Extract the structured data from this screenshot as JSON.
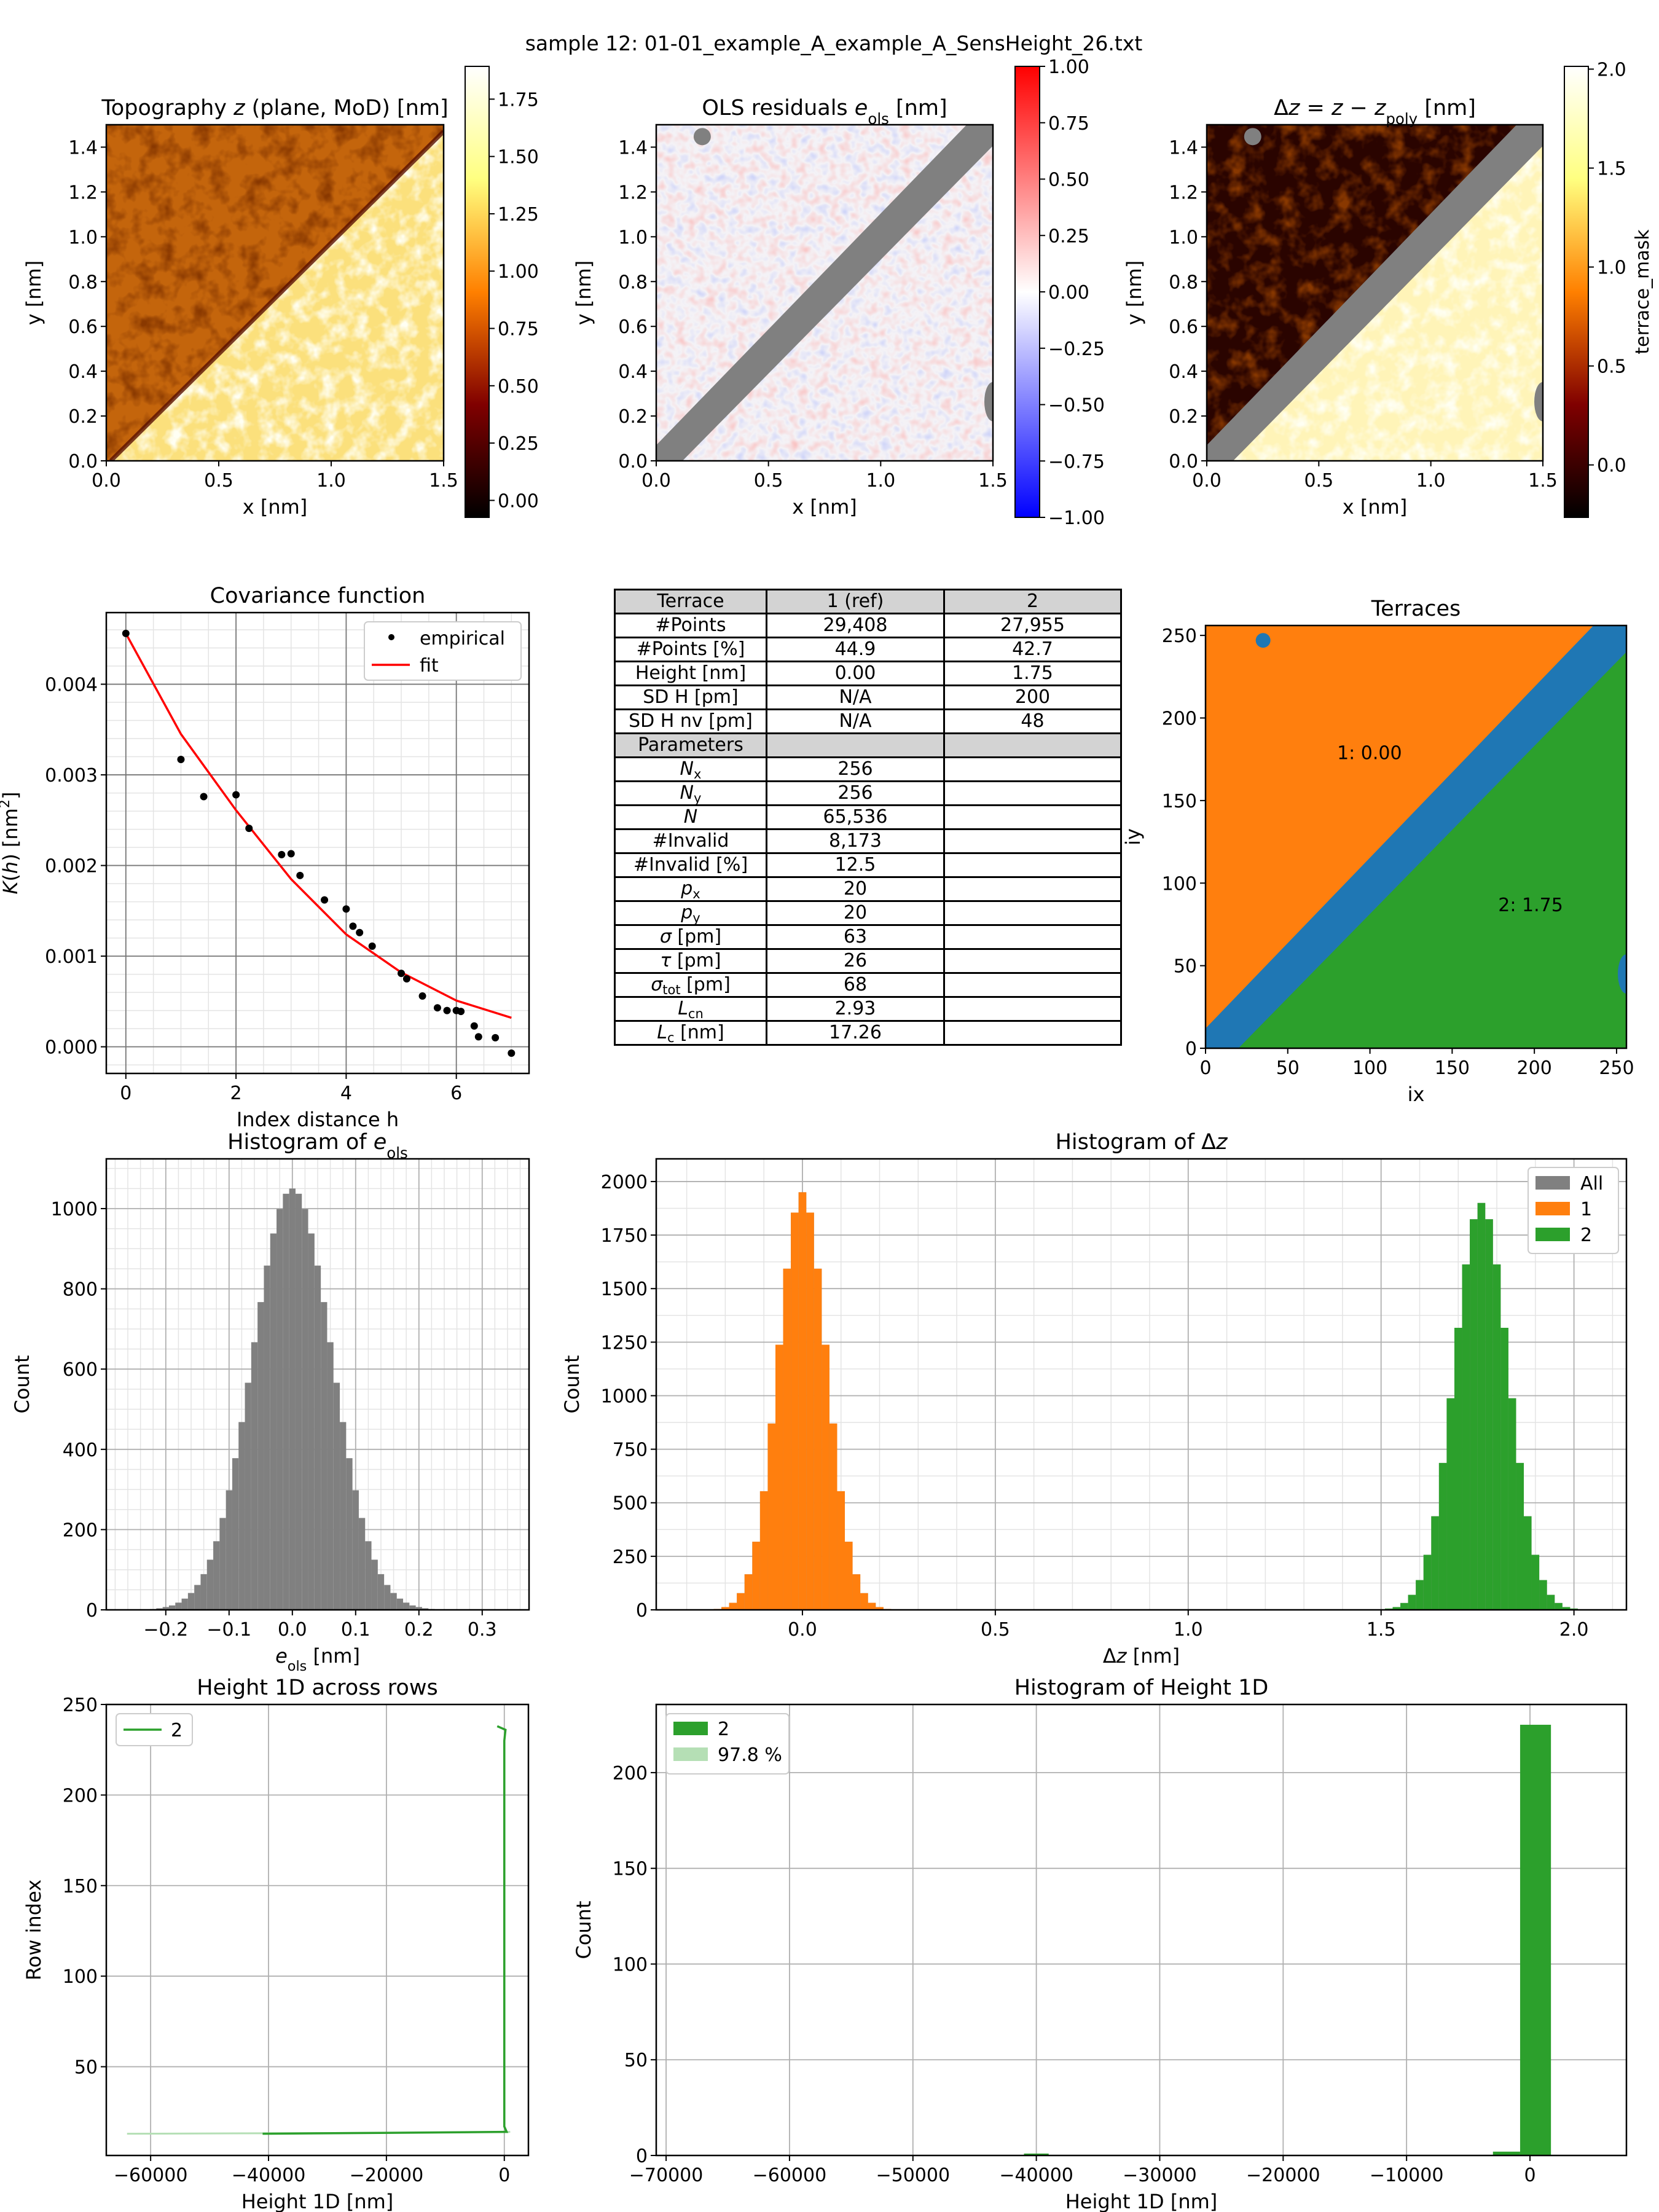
{
  "suptitle": "sample 12: 01-01_example_A_example_A_SensHeight_26.txt",
  "table": {
    "header": [
      "Terrace",
      "1 (ref)",
      "2"
    ],
    "rows": [
      {
        "label": "#Points",
        "cells": [
          "29,408",
          "27,955"
        ]
      },
      {
        "label": "#Points [%]",
        "cells": [
          "44.9",
          "42.7"
        ]
      },
      {
        "label": "Height [nm]",
        "cells": [
          "0.00",
          "1.75"
        ]
      },
      {
        "label": "SD H [pm]",
        "cells": [
          "N/A",
          "200"
        ]
      },
      {
        "label": "SD H nv [pm]",
        "cells": [
          "N/A",
          "48"
        ]
      }
    ],
    "section": "Parameters",
    "params": [
      {
        "label": "N",
        "sub": "x",
        "italic": true,
        "rest": "",
        "cells": [
          "256",
          ""
        ]
      },
      {
        "label": "N",
        "sub": "y",
        "italic": true,
        "rest": "",
        "cells": [
          "256",
          ""
        ]
      },
      {
        "label": "N",
        "sub": "",
        "italic": true,
        "rest": "",
        "cells": [
          "65,536",
          ""
        ]
      },
      {
        "label": "#Invalid",
        "sub": "",
        "italic": false,
        "rest": "",
        "cells": [
          "8,173",
          ""
        ]
      },
      {
        "label": "#Invalid [%]",
        "sub": "",
        "italic": false,
        "rest": "",
        "cells": [
          "12.5",
          ""
        ]
      },
      {
        "label": "p",
        "sub": "x",
        "italic": true,
        "rest": "",
        "cells": [
          "20",
          ""
        ]
      },
      {
        "label": "p",
        "sub": "y",
        "italic": true,
        "rest": "",
        "cells": [
          "20",
          ""
        ]
      },
      {
        "label": "σ",
        "sub": "",
        "italic": true,
        "rest": " [pm]",
        "cells": [
          "63",
          ""
        ]
      },
      {
        "label": "τ",
        "sub": "",
        "italic": true,
        "rest": " [pm]",
        "cells": [
          "26",
          ""
        ]
      },
      {
        "label": "σ",
        "sub": "tot",
        "italic": true,
        "rest": " [pm]",
        "cells": [
          "68",
          ""
        ]
      },
      {
        "label": "L",
        "sub": "cn",
        "italic": true,
        "rest": "",
        "cells": [
          "2.93",
          ""
        ]
      },
      {
        "label": "L",
        "sub": "c",
        "italic": true,
        "rest": " [nm]",
        "cells": [
          "17.26",
          ""
        ]
      }
    ]
  },
  "chart_data": [
    {
      "id": "topography",
      "type": "heatmap",
      "colormap": "afmhot",
      "title": [
        {
          "t": "Topography "
        },
        {
          "t": "z",
          "i": 1
        },
        {
          "t": " (plane, MoD) [nm]"
        }
      ],
      "xlabel": "x [nm]",
      "ylabel": "y [nm]",
      "xlim": [
        0,
        1.5
      ],
      "ylim": [
        0,
        1.5
      ],
      "xticks": [
        0,
        0.5,
        1,
        1.5
      ],
      "xticklabels": [
        "0.0",
        "0.5",
        "1.0",
        "1.5"
      ],
      "yticks": [
        0,
        0.2,
        0.4,
        0.6,
        0.8,
        1.0,
        1.2,
        1.4
      ],
      "yticklabels": [
        "0.0",
        "0.2",
        "0.4",
        "0.6",
        "0.8",
        "1.0",
        "1.2",
        "1.4"
      ],
      "colorbar": {
        "lim": [
          -0.074,
          1.893
        ],
        "ticks": [
          0,
          0.25,
          0.5,
          0.75,
          1.0,
          1.25,
          1.5,
          1.75
        ],
        "ticklabels": [
          "0.00",
          "0.25",
          "0.50",
          "0.75",
          "1.00",
          "1.25",
          "1.50",
          "1.75"
        ],
        "label": ""
      }
    },
    {
      "id": "residuals",
      "type": "heatmap",
      "colormap": "bwr",
      "title": [
        {
          "t": "OLS residuals "
        },
        {
          "t": "e",
          "i": 1
        },
        {
          "t": "ols",
          "sub": 1
        },
        {
          "t": " [nm]"
        }
      ],
      "xlabel": "x [nm]",
      "ylabel": "y [nm]",
      "xlim": [
        0,
        1.5
      ],
      "ylim": [
        0,
        1.5
      ],
      "xticks": [
        0,
        0.5,
        1,
        1.5
      ],
      "xticklabels": [
        "0.0",
        "0.5",
        "1.0",
        "1.5"
      ],
      "yticks": [
        0,
        0.2,
        0.4,
        0.6,
        0.8,
        1.0,
        1.2,
        1.4
      ],
      "yticklabels": [
        "0.0",
        "0.2",
        "0.4",
        "0.6",
        "0.8",
        "1.0",
        "1.2",
        "1.4"
      ],
      "colorbar": {
        "lim": [
          -1,
          1
        ],
        "ticks": [
          -1,
          -0.75,
          -0.5,
          -0.25,
          0,
          0.25,
          0.5,
          0.75,
          1
        ],
        "ticklabels": [
          "−1.00",
          "−0.75",
          "−0.50",
          "−0.25",
          "0.00",
          "0.25",
          "0.50",
          "0.75",
          "1.00"
        ],
        "label": ""
      }
    },
    {
      "id": "dz-map",
      "type": "heatmap",
      "colormap": "afmhot",
      "title": [
        {
          "t": "Δ"
        },
        {
          "t": "z",
          "i": 1
        },
        {
          "t": " = "
        },
        {
          "t": "z",
          "i": 1
        },
        {
          "t": " − "
        },
        {
          "t": "z",
          "i": 1
        },
        {
          "t": "poly",
          "sub": 1
        },
        {
          "t": " [nm]"
        }
      ],
      "xlabel": "x [nm]",
      "ylabel": "y [nm]",
      "xlim": [
        0,
        1.5
      ],
      "ylim": [
        0,
        1.5
      ],
      "xticks": [
        0,
        0.5,
        1,
        1.5
      ],
      "xticklabels": [
        "0.0",
        "0.5",
        "1.0",
        "1.5"
      ],
      "yticks": [
        0,
        0.2,
        0.4,
        0.6,
        0.8,
        1.0,
        1.2,
        1.4
      ],
      "yticklabels": [
        "0.0",
        "0.2",
        "0.4",
        "0.6",
        "0.8",
        "1.0",
        "1.2",
        "1.4"
      ],
      "colorbar": {
        "lim": [
          -0.265,
          2.014
        ],
        "ticks": [
          0,
          0.5,
          1,
          1.5,
          2
        ],
        "ticklabels": [
          "0.0",
          "0.5",
          "1.0",
          "1.5",
          "2.0"
        ],
        "label": "terrace_mask"
      }
    },
    {
      "id": "covariance",
      "type": "scatter",
      "title": "Covariance function",
      "xlabel": "Index distance h",
      "ylabel": [
        {
          "t": "K",
          "i": 1
        },
        {
          "t": "("
        },
        {
          "t": "h",
          "i": 1
        },
        {
          "t": ") [nm"
        },
        {
          "t": "2",
          "sup": 1
        },
        {
          "t": "]"
        }
      ],
      "xlim": [
        -0.355,
        7.32
      ],
      "ylim": [
        -0.000294,
        0.00479
      ],
      "xticks": [
        0,
        2,
        4,
        6
      ],
      "xticklabels": [
        "0",
        "2",
        "4",
        "6"
      ],
      "yticks": [
        0,
        0.001,
        0.002,
        0.003,
        0.004
      ],
      "yticklabels": [
        "0.000",
        "0.001",
        "0.002",
        "0.003",
        "0.004"
      ],
      "grid": true,
      "minor": {
        "x": 0.5,
        "y": 0.0002
      },
      "legend": {
        "placement": "top-right",
        "entries": [
          "empirical",
          "fit"
        ]
      },
      "series": [
        {
          "name": "empirical",
          "kind": "points",
          "color": "#000000",
          "x": [
            0,
            1,
            1.414,
            2,
            2.236,
            2.828,
            3,
            3.162,
            3.606,
            4,
            4.123,
            4.243,
            4.472,
            5,
            5.099,
            5.385,
            5.657,
            5.831,
            6,
            6.083,
            6.325,
            6.403,
            6.708,
            7
          ],
          "y": [
            0.00456,
            0.00317,
            0.00276,
            0.00278,
            0.00241,
            0.00212,
            0.00213,
            0.00189,
            0.00162,
            0.00152,
            0.00133,
            0.00126,
            0.00111,
            0.00081,
            0.00075,
            0.00056,
            0.00043,
            0.0004,
            0.0004,
            0.00039,
            0.00023,
            0.00011,
            0.0001,
            -7e-05
          ]
        },
        {
          "name": "fit",
          "kind": "line",
          "color": "#ff0000",
          "x": [
            0,
            1,
            2,
            3,
            4,
            5,
            6,
            7
          ],
          "y": [
            0.00456,
            0.00345,
            0.00261,
            0.00185,
            0.00124,
            0.00082,
            0.00051,
            0.00032
          ]
        }
      ]
    },
    {
      "id": "terraces",
      "type": "heatmap",
      "title": "Terraces",
      "xlabel": "ix",
      "ylabel": "iy",
      "xlim": [
        0,
        256
      ],
      "ylim": [
        0,
        256
      ],
      "xticks": [
        0,
        50,
        100,
        150,
        200,
        250
      ],
      "xticklabels": [
        "0",
        "50",
        "100",
        "150",
        "200",
        "250"
      ],
      "yticks": [
        0,
        50,
        100,
        150,
        200,
        250
      ],
      "yticklabels": [
        "0",
        "50",
        "100",
        "150",
        "200",
        "250"
      ],
      "colors": {
        "invalid": "#1f77b4",
        "terrace1": "#ff7f0e",
        "terrace2": "#2ca02c"
      },
      "annotations": [
        {
          "text": "1: 0.00",
          "x": 80,
          "y": 175
        },
        {
          "text": "2: 1.75",
          "x": 178,
          "y": 83
        }
      ]
    },
    {
      "id": "hist-eols",
      "type": "bar",
      "title": [
        {
          "t": "Histogram of "
        },
        {
          "t": "e",
          "i": 1
        },
        {
          "t": "ols",
          "sub": 1
        }
      ],
      "xlabel": [
        {
          "t": "e",
          "i": 1
        },
        {
          "t": "ols",
          "sub": 1
        },
        {
          "t": " [nm]"
        }
      ],
      "ylabel": "Count",
      "xlim": [
        -0.294,
        0.374
      ],
      "ylim": [
        0,
        1124
      ],
      "xticks": [
        -0.2,
        -0.1,
        0,
        0.1,
        0.2,
        0.3
      ],
      "xticklabels": [
        "−0.2",
        "−0.1",
        "0.0",
        "0.1",
        "0.2",
        "0.3"
      ],
      "yticks": [
        0,
        200,
        400,
        600,
        800,
        1000
      ],
      "yticklabels": [
        "0",
        "200",
        "400",
        "600",
        "800",
        "1000"
      ],
      "grid": true,
      "minor": {
        "x": 0.02,
        "y": 50
      },
      "series": [
        {
          "name": "",
          "color": "#808080",
          "bin_start": -0.255,
          "bin_width": 0.01,
          "counts": [
            0,
            1,
            1,
            2,
            4,
            7,
            11,
            18,
            28,
            42,
            62,
            89,
            125,
            171,
            229,
            298,
            378,
            468,
            566,
            667,
            767,
            858,
            938,
            999,
            1037,
            1050,
            1037,
            999,
            938,
            858,
            767,
            667,
            566,
            468,
            378,
            298,
            229,
            171,
            125,
            89,
            62,
            42,
            28,
            18,
            11,
            7,
            4,
            2,
            1,
            1,
            1,
            1,
            0,
            0,
            0,
            1,
            0,
            0,
            0
          ]
        }
      ]
    },
    {
      "id": "hist-dz",
      "type": "bar",
      "title": [
        {
          "t": "Histogram of Δ"
        },
        {
          "t": "z",
          "i": 1
        }
      ],
      "xlabel": [
        {
          "t": "Δ"
        },
        {
          "t": "z",
          "i": 1
        },
        {
          "t": " [nm]"
        }
      ],
      "ylabel": "Count",
      "xlim": [
        -0.379,
        2.136
      ],
      "ylim": [
        0,
        2106
      ],
      "xticks": [
        0,
        0.5,
        1,
        1.5,
        2
      ],
      "xticklabels": [
        "0.0",
        "0.5",
        "1.0",
        "1.5",
        "2.0"
      ],
      "yticks": [
        0,
        250,
        500,
        750,
        1000,
        1250,
        1500,
        1750,
        2000
      ],
      "yticklabels": [
        "0",
        "250",
        "500",
        "750",
        "1000",
        "1250",
        "1500",
        "1750",
        "2000"
      ],
      "grid": true,
      "minor": {
        "x": 0.1,
        "y": 125
      },
      "legend": {
        "placement": "top-right",
        "entries": [
          "All",
          "1",
          "2"
        ]
      },
      "series": [
        {
          "name": "All",
          "color": "#808080",
          "bin_start": -0.25,
          "bin_width": 0.02,
          "counts": [
            1,
            4,
            13,
            33,
            78,
            166,
            318,
            554,
            870,
            1238,
            1593,
            1855,
            1950,
            1855,
            1593,
            1238,
            870,
            554,
            318,
            166,
            78,
            33,
            13,
            4,
            1
          ]
        },
        {
          "name": "All",
          "color": "#808080",
          "bin_start": 1.51,
          "bin_width": 0.02,
          "counts": [
            6,
            13,
            32,
            70,
            139,
            257,
            437,
            686,
            988,
            1317,
            1613,
            1824,
            1900,
            1824,
            1613,
            1317,
            988,
            686,
            437,
            257,
            139,
            70,
            32,
            13,
            6
          ]
        },
        {
          "name": "1",
          "color": "#ff7f0e",
          "bin_start": -0.25,
          "bin_width": 0.02,
          "counts": [
            1,
            4,
            13,
            33,
            78,
            166,
            318,
            554,
            870,
            1238,
            1593,
            1855,
            1950,
            1855,
            1593,
            1238,
            870,
            554,
            318,
            166,
            78,
            33,
            13,
            4,
            1
          ]
        },
        {
          "name": "2",
          "color": "#2ca02c",
          "bin_start": 1.51,
          "bin_width": 0.02,
          "counts": [
            6,
            13,
            32,
            70,
            139,
            257,
            437,
            686,
            988,
            1317,
            1613,
            1824,
            1900,
            1824,
            1613,
            1317,
            988,
            686,
            437,
            257,
            139,
            70,
            32,
            13,
            6
          ]
        }
      ]
    },
    {
      "id": "height1d-rows",
      "type": "line",
      "title": "Height 1D across rows",
      "xlabel": "Height 1D [nm]",
      "ylabel": "Row index",
      "xlim": [
        -67520,
        4090
      ],
      "ylim": [
        1,
        250
      ],
      "xticks": [
        -60000,
        -40000,
        -20000,
        0
      ],
      "xticklabels": [
        "−60000",
        "−40000",
        "−20000",
        "0"
      ],
      "yticks": [
        50,
        100,
        150,
        200,
        250
      ],
      "yticklabels": [
        "50",
        "100",
        "150",
        "200",
        "250"
      ],
      "grid": true,
      "legend": {
        "placement": "top-left",
        "entries": [
          "2"
        ]
      },
      "series": [
        {
          "name": "",
          "color": "#b5dfb5",
          "x": [
            -64000,
            -20000,
            1000
          ],
          "y": [
            13,
            13.5,
            14
          ]
        },
        {
          "name": "2",
          "color": "#2ca02c",
          "x": [
            -41000,
            0,
            400,
            0,
            0,
            0,
            200,
            -500,
            -1200
          ],
          "y": [
            13,
            14,
            14,
            17,
            100,
            230,
            236,
            237,
            238
          ]
        }
      ]
    },
    {
      "id": "hist-height1d",
      "type": "bar",
      "title": "Histogram of Height 1D",
      "xlabel": "Height 1D [nm]",
      "ylabel": "Count",
      "xlim": [
        -70800,
        7816
      ],
      "ylim": [
        0,
        235.6
      ],
      "xticks": [
        -70000,
        -60000,
        -50000,
        -40000,
        -30000,
        -20000,
        -10000,
        0
      ],
      "xticklabels": [
        "−70000",
        "−60000",
        "−50000",
        "−40000",
        "−30000",
        "−20000",
        "−10000",
        "0"
      ],
      "yticks": [
        0,
        50,
        100,
        150,
        200
      ],
      "yticklabels": [
        "0",
        "50",
        "100",
        "150",
        "200"
      ],
      "grid": true,
      "legend": {
        "placement": "top-left",
        "entries": [
          "2",
          "97.8 %"
        ],
        "colors": [
          "#2ca02c",
          "#b5dfb5"
        ]
      },
      "bins": [
        [
          -41000,
          -39000,
          1
        ],
        [
          -3000,
          -800,
          2
        ],
        [
          -800,
          1700,
          225
        ]
      ],
      "color": "#2ca02c"
    }
  ]
}
